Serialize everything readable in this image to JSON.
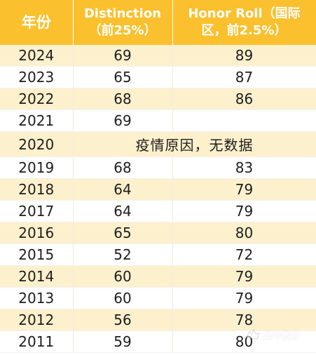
{
  "header": {
    "year": "年份",
    "distinction": [
      "Distinction",
      "（前25%）"
    ],
    "honor_roll": [
      "Honor Roll（国际",
      "区，前2.5%）"
    ]
  },
  "rows": [
    {
      "year": "2024",
      "distinction": "69",
      "honor_roll": "89"
    },
    {
      "year": "2023",
      "distinction": "65",
      "honor_roll": "87"
    },
    {
      "year": "2022",
      "distinction": "68",
      "honor_roll": "86"
    },
    {
      "year": "2021",
      "distinction": "69",
      "honor_roll": ""
    },
    {
      "year": "2020",
      "note": "疫情原因，无数据"
    },
    {
      "year": "2019",
      "distinction": "68",
      "honor_roll": "83"
    },
    {
      "year": "2018",
      "distinction": "64",
      "honor_roll": "79"
    },
    {
      "year": "2017",
      "distinction": "64",
      "honor_roll": "79"
    },
    {
      "year": "2016",
      "distinction": "65",
      "honor_roll": "80"
    },
    {
      "year": "2015",
      "distinction": "52",
      "honor_roll": "72"
    },
    {
      "year": "2014",
      "distinction": "60",
      "honor_roll": "79"
    },
    {
      "year": "2013",
      "distinction": "60",
      "honor_roll": "79"
    },
    {
      "year": "2012",
      "distinction": "56",
      "honor_roll": "78"
    },
    {
      "year": "2011",
      "distinction": "59",
      "honor_roll": "80"
    }
  ],
  "watermark": {
    "text": "犀牛教育",
    "icon": "rhino-logo-icon"
  },
  "colors": {
    "header": "#fbc02d",
    "stripe": "#fdf0cd",
    "text": "#1e1e1e"
  }
}
